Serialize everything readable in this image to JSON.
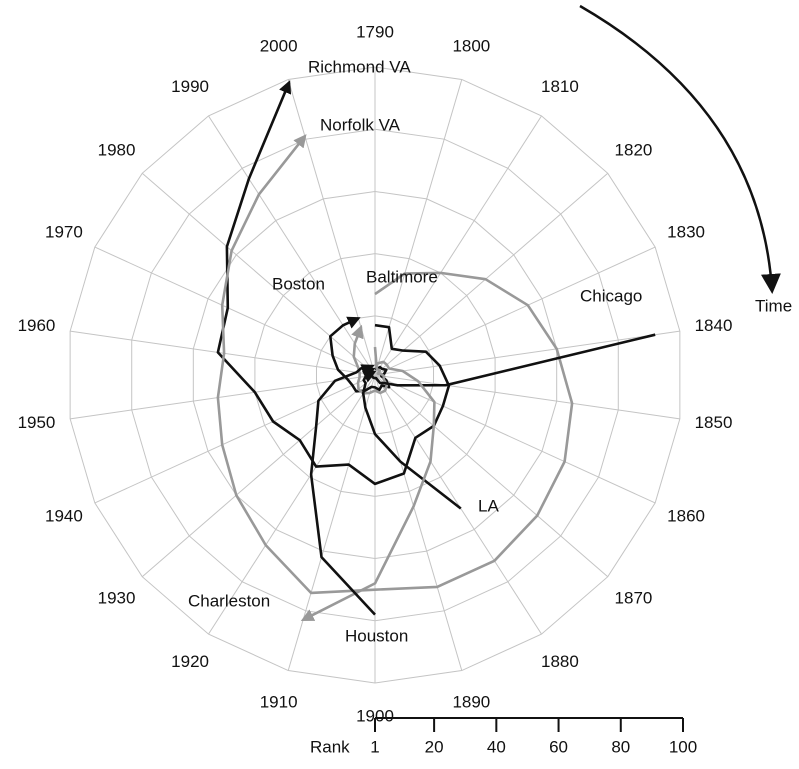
{
  "chart_data": {
    "type": "radar",
    "categories": [
      "1790",
      "1800",
      "1810",
      "1820",
      "1830",
      "1840",
      "1850",
      "1860",
      "1870",
      "1880",
      "1890",
      "1900",
      "1910",
      "1920",
      "1930",
      "1940",
      "1950",
      "1960",
      "1970",
      "1980",
      "1990",
      "2000"
    ],
    "rlim": [
      1,
      100
    ],
    "rticks": [
      1,
      20,
      40,
      60,
      80,
      100
    ],
    "r_label": "Rank",
    "grid": true,
    "annotation": "Time",
    "series": [
      {
        "name": "Richmond VA",
        "color": "#111111",
        "values": [
          17,
          17,
          11,
          13,
          19,
          22,
          25,
          25,
          26,
          25,
          34,
          36,
          31,
          36,
          33,
          37,
          40,
          52,
          53,
          64,
          76,
          99
        ]
      },
      {
        "name": "Norfolk VA",
        "color": "#999999",
        "values": [
          27,
          35,
          40,
          48,
          55,
          60,
          65,
          68,
          70,
          72,
          72,
          70,
          74,
          66,
          60,
          55,
          52,
          50,
          55,
          62,
          70,
          81
        ]
      },
      {
        "name": "Boston",
        "color": "#111111",
        "values": [
          3,
          3,
          4,
          4,
          5,
          4,
          3,
          5,
          7,
          5,
          6,
          5,
          5,
          7,
          9,
          9,
          10,
          13,
          16,
          20,
          20,
          20
        ]
      },
      {
        "name": "Baltimore",
        "color": "#999999",
        "values": [
          10,
          3,
          3,
          3,
          2,
          3,
          4,
          4,
          6,
          7,
          7,
          6,
          7,
          8,
          8,
          7,
          6,
          6,
          7,
          10,
          13,
          17
        ]
      },
      {
        "name": "Chicago",
        "color": "#111111",
        "values": [
          null,
          null,
          null,
          null,
          null,
          92,
          24,
          9,
          5,
          4,
          2,
          2,
          2,
          2,
          2,
          2,
          2,
          2,
          2,
          2,
          3,
          3
        ]
      },
      {
        "name": "LA",
        "color": "#111111",
        "values": [
          null,
          null,
          null,
          null,
          null,
          null,
          null,
          null,
          null,
          52,
          30,
          20,
          12,
          8,
          5,
          5,
          4,
          3,
          3,
          3,
          2,
          2
        ]
      },
      {
        "name": "Charleston",
        "color": "#999999",
        "values": [
          4,
          5,
          6,
          6,
          6,
          10,
          15,
          22,
          26,
          34,
          45,
          68,
          83,
          null,
          null,
          null,
          null,
          null,
          null,
          null,
          null,
          null
        ]
      },
      {
        "name": "Houston",
        "color": "#111111",
        "values": [
          null,
          null,
          null,
          null,
          null,
          null,
          null,
          null,
          null,
          null,
          null,
          78,
          62,
          39,
          26,
          21,
          14,
          7,
          6,
          5,
          4,
          4
        ]
      }
    ]
  }
}
